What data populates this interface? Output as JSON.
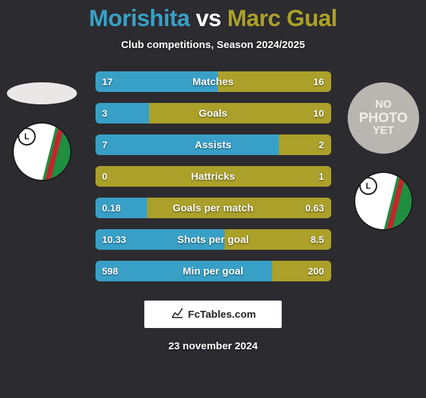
{
  "background_color": "#2c2b30",
  "title": {
    "player1": "Morishita",
    "vs": "vs",
    "player2": "Marc Gual",
    "color_p1": "#38a0c7",
    "color_vs": "#ffffff",
    "color_p2": "#aba029",
    "fontsize": 34
  },
  "subtitle": {
    "text": "Club competitions, Season 2024/2025",
    "fontsize": 15
  },
  "stats": {
    "row_bg": "#4a4334",
    "left_color": "#38a0c7",
    "right_color": "#aba029",
    "label_fontsize": 15,
    "value_fontsize": 14,
    "rows": [
      {
        "label": "Matches",
        "left": "17",
        "right": "16",
        "left_pct": 0.52,
        "right_pct": 0.48
      },
      {
        "label": "Goals",
        "left": "3",
        "right": "10",
        "left_pct": 0.23,
        "right_pct": 0.77
      },
      {
        "label": "Assists",
        "left": "7",
        "right": "2",
        "left_pct": 0.78,
        "right_pct": 0.22
      },
      {
        "label": "Hattricks",
        "left": "0",
        "right": "1",
        "left_pct": 0.0,
        "right_pct": 1.0
      },
      {
        "label": "Goals per match",
        "left": "0.18",
        "right": "0.63",
        "left_pct": 0.22,
        "right_pct": 0.78
      },
      {
        "label": "Shots per goal",
        "left": "10.33",
        "right": "8.5",
        "left_pct": 0.55,
        "right_pct": 0.45
      },
      {
        "label": "Min per goal",
        "left": "598",
        "right": "200",
        "left_pct": 0.75,
        "right_pct": 0.25
      }
    ]
  },
  "brand": {
    "text": "FcTables.com",
    "fontsize": 15
  },
  "date": {
    "text": "23 november 2024",
    "fontsize": 15
  },
  "avatars": {
    "no_photo_line1": "NO",
    "no_photo_line2": "PHOTO",
    "no_photo_line3": "YET",
    "badge_letter": "L"
  }
}
